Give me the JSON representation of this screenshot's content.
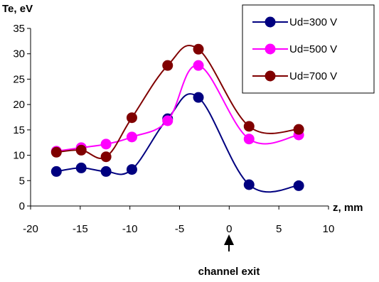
{
  "chart_data": {
    "type": "line",
    "title": "",
    "ylabel": "Te, eV",
    "xlabel": "z, mm",
    "xlim": [
      -20,
      10
    ],
    "ylim": [
      0,
      35
    ],
    "x_ticks": [
      -20,
      -15,
      -10,
      -5,
      0,
      5,
      10
    ],
    "y_ticks": [
      0,
      5,
      10,
      15,
      20,
      25,
      30,
      35
    ],
    "grid": false,
    "legend_position": "top-right",
    "annotation": {
      "text": "channel exit",
      "x": 0
    },
    "series": [
      {
        "name": "Ud=300 V",
        "color": "#000080",
        "x": [
          -17.4,
          -14.9,
          -12.4,
          -9.8,
          -6.2,
          -3.1,
          2.0,
          7.0
        ],
        "y": [
          6.8,
          7.5,
          6.8,
          7.2,
          17.2,
          21.4,
          4.2,
          4.0
        ]
      },
      {
        "name": "Ud=500 V",
        "color": "#ff00ff",
        "x": [
          -17.4,
          -14.9,
          -12.4,
          -9.8,
          -6.2,
          -3.1,
          2.0,
          7.0
        ],
        "y": [
          10.8,
          11.5,
          12.2,
          13.6,
          16.8,
          27.7,
          13.2,
          14.0
        ]
      },
      {
        "name": "Ud=700 V",
        "color": "#800000",
        "x": [
          -17.4,
          -14.9,
          -12.4,
          -9.8,
          -6.2,
          -3.1,
          2.0,
          7.0
        ],
        "y": [
          10.6,
          11.0,
          9.7,
          17.4,
          27.7,
          30.9,
          15.7,
          15.1
        ]
      }
    ]
  }
}
